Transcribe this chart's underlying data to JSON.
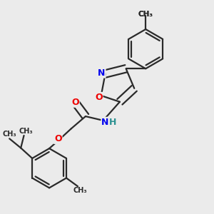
{
  "bg_color": "#ebebeb",
  "bond_color": "#2a2a2a",
  "bond_width": 1.6,
  "atom_colors": {
    "N": "#0000ee",
    "O": "#ee0000",
    "H": "#2a9090",
    "C": "#2a2a2a"
  },
  "figsize": [
    3.0,
    3.0
  ],
  "dpi": 100,
  "xlim": [
    0,
    10
  ],
  "ylim": [
    0,
    10
  ]
}
